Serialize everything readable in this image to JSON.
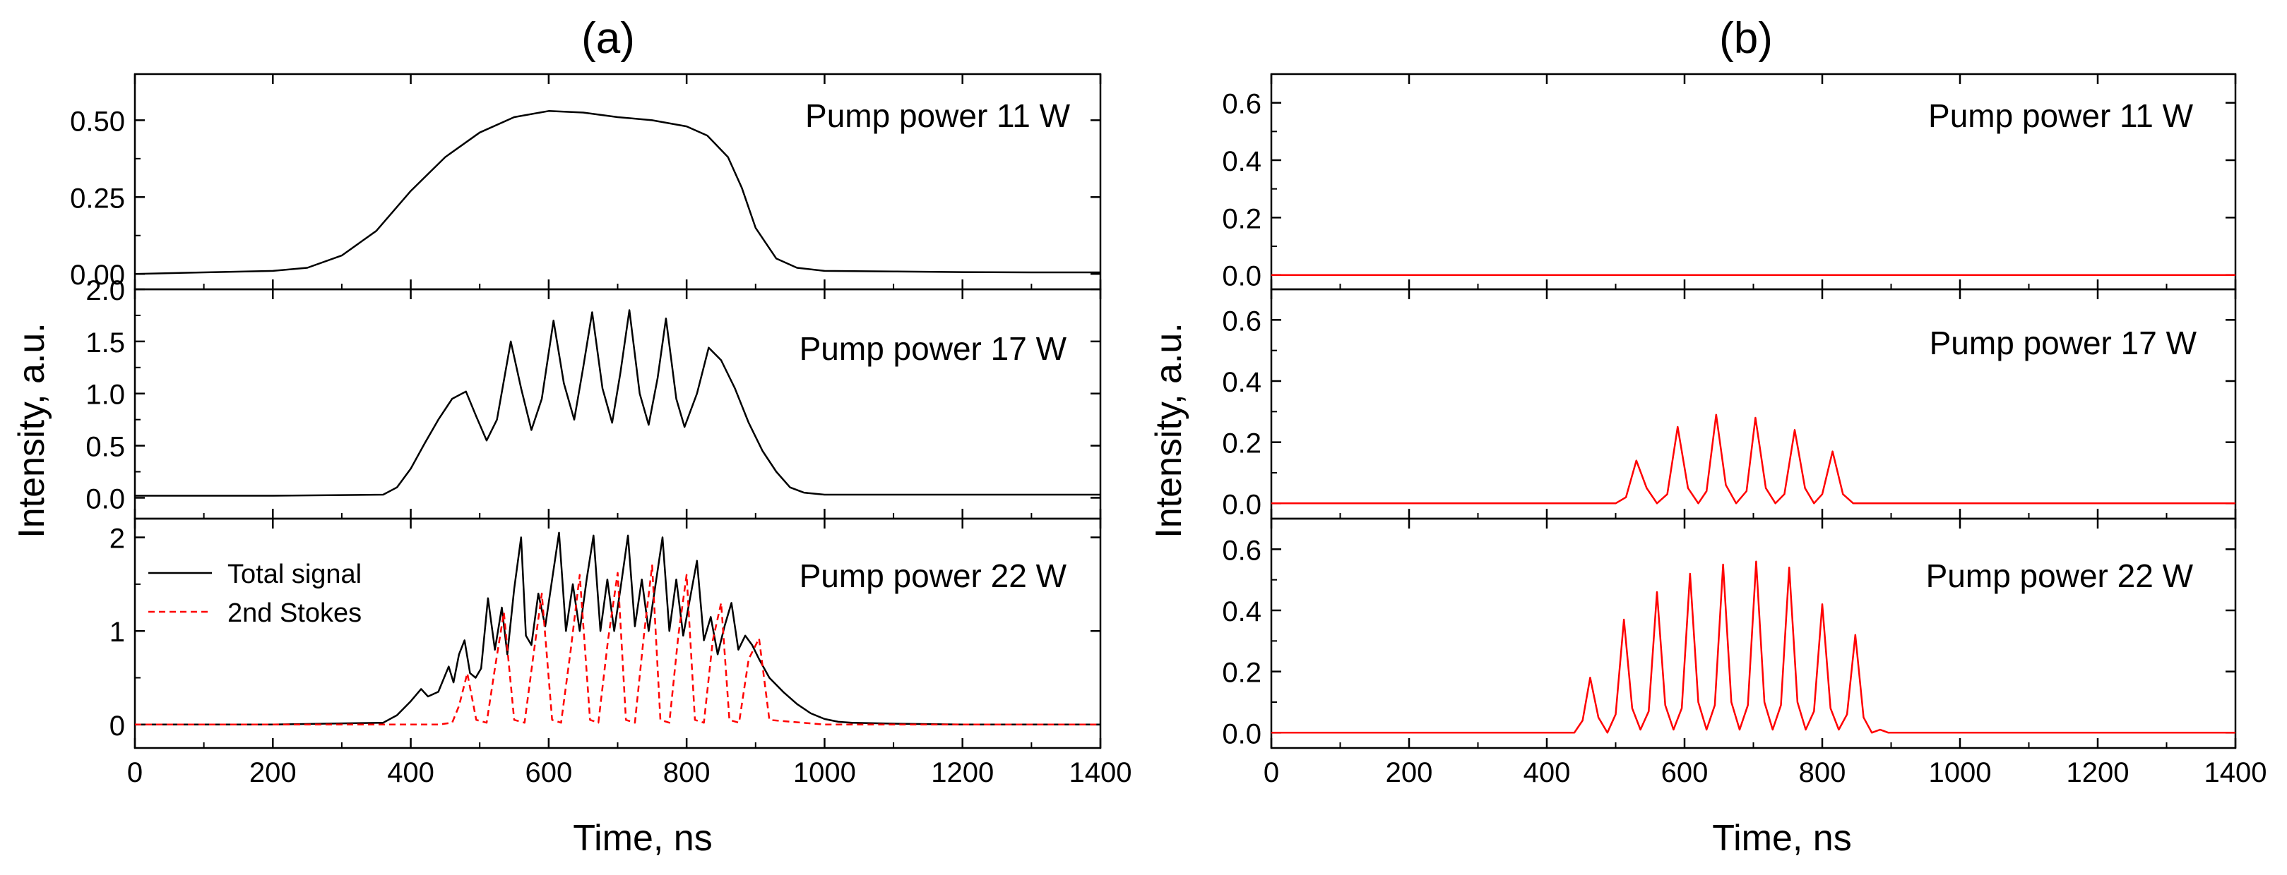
{
  "colors": {
    "black": "#000000",
    "red": "#ff0000"
  },
  "chart_data": [
    {
      "id": "a",
      "type": "line",
      "label": "(a)",
      "xlabel": "Time, ns",
      "ylabel": "Intensity, a.u.",
      "xlim": [
        0,
        1400
      ],
      "xticks": [
        "0",
        "200",
        "400",
        "600",
        "800",
        "1000",
        "1200",
        "1400"
      ],
      "panels": [
        {
          "title": "Pump power 11 W",
          "ylim": [
            -0.05,
            0.65
          ],
          "yticks": [
            {
              "v": 0,
              "label": "0.00"
            },
            {
              "v": 0.25,
              "label": "0.25"
            },
            {
              "v": 0.5,
              "label": "0.50"
            }
          ],
          "series": [
            {
              "name": "Total signal",
              "color": "#000000",
              "style": "solid",
              "x": [
                0,
                100,
                200,
                250,
                300,
                350,
                400,
                450,
                500,
                550,
                600,
                650,
                700,
                750,
                800,
                830,
                860,
                880,
                900,
                930,
                960,
                1000,
                1100,
                1200,
                1300,
                1400
              ],
              "y": [
                0.0,
                0.005,
                0.01,
                0.02,
                0.06,
                0.14,
                0.27,
                0.38,
                0.46,
                0.51,
                0.53,
                0.525,
                0.51,
                0.5,
                0.48,
                0.45,
                0.38,
                0.28,
                0.15,
                0.05,
                0.02,
                0.01,
                0.008,
                0.006,
                0.005,
                0.005
              ]
            }
          ]
        },
        {
          "title": "Pump power  17 W",
          "ylim": [
            -0.2,
            2.0
          ],
          "yticks": [
            {
              "v": 0,
              "label": "0.0"
            },
            {
              "v": 0.5,
              "label": "0.5"
            },
            {
              "v": 1.0,
              "label": "1.0"
            },
            {
              "v": 1.5,
              "label": "1.5"
            },
            {
              "v": 2.0,
              "label": "2.0"
            }
          ],
          "series": [
            {
              "name": "Total signal",
              "color": "#000000",
              "style": "solid",
              "x": [
                0,
                200,
                360,
                380,
                400,
                420,
                440,
                460,
                480,
                495,
                510,
                525,
                545,
                560,
                575,
                590,
                607,
                622,
                637,
                650,
                663,
                678,
                692,
                704,
                717,
                732,
                745,
                758,
                770,
                785,
                797,
                815,
                832,
                850,
                870,
                890,
                910,
                930,
                950,
                970,
                1000,
                1100,
                1400
              ],
              "y": [
                0.02,
                0.02,
                0.03,
                0.1,
                0.28,
                0.52,
                0.75,
                0.95,
                1.02,
                0.78,
                0.55,
                0.75,
                1.5,
                1.05,
                0.65,
                0.95,
                1.7,
                1.1,
                0.75,
                1.25,
                1.78,
                1.05,
                0.72,
                1.2,
                1.8,
                1.0,
                0.7,
                1.15,
                1.72,
                0.95,
                0.68,
                1.0,
                1.44,
                1.32,
                1.05,
                0.72,
                0.45,
                0.25,
                0.1,
                0.05,
                0.03,
                0.03,
                0.03
              ]
            }
          ]
        },
        {
          "title": "Pump power  22 W",
          "ylim": [
            -0.25,
            2.2
          ],
          "yticks": [
            {
              "v": 0,
              "label": "0"
            },
            {
              "v": 1,
              "label": "1"
            },
            {
              "v": 2,
              "label": "2"
            }
          ],
          "legend": [
            {
              "label": "Total signal",
              "color": "#000000",
              "style": "solid"
            },
            {
              "label": "2nd Stokes",
              "color": "#ff0000",
              "style": "dashed"
            }
          ],
          "series": [
            {
              "name": "Total signal",
              "color": "#000000",
              "style": "solid",
              "x": [
                0,
                200,
                360,
                380,
                400,
                415,
                425,
                440,
                455,
                462,
                470,
                478,
                486,
                494,
                502,
                512,
                522,
                532,
                540,
                550,
                560,
                567,
                575,
                585,
                595,
                605,
                615,
                625,
                635,
                645,
                655,
                665,
                675,
                685,
                695,
                705,
                715,
                725,
                735,
                745,
                755,
                765,
                775,
                785,
                795,
                805,
                815,
                825,
                835,
                845,
                855,
                865,
                875,
                885,
                895,
                905,
                920,
                940,
                960,
                980,
                1000,
                1020,
                1040,
                1100,
                1200,
                1400
              ],
              "y": [
                0.0,
                0.0,
                0.02,
                0.1,
                0.25,
                0.38,
                0.3,
                0.35,
                0.62,
                0.45,
                0.75,
                0.9,
                0.55,
                0.5,
                0.6,
                1.35,
                0.8,
                1.25,
                0.75,
                1.45,
                2.0,
                0.95,
                0.85,
                1.4,
                1.05,
                1.55,
                2.05,
                1.0,
                1.5,
                1.0,
                1.55,
                2.02,
                1.0,
                1.55,
                1.0,
                1.5,
                2.02,
                1.05,
                1.55,
                1.0,
                1.5,
                2.0,
                1.0,
                1.55,
                0.95,
                1.35,
                1.75,
                0.9,
                1.15,
                0.75,
                1.05,
                1.3,
                0.8,
                0.95,
                0.85,
                0.7,
                0.5,
                0.35,
                0.22,
                0.12,
                0.06,
                0.03,
                0.02,
                0.01,
                0.0,
                0.0
              ]
            },
            {
              "name": "2nd Stokes",
              "color": "#ff0000",
              "style": "dashed",
              "x": [
                0,
                440,
                460,
                470,
                482,
                495,
                510,
                522,
                535,
                550,
                565,
                578,
                590,
                605,
                618,
                632,
                645,
                660,
                672,
                686,
                700,
                712,
                725,
                738,
                750,
                762,
                775,
                788,
                800,
                812,
                825,
                838,
                850,
                862,
                876,
                890,
                905,
                920,
                1000,
                1400
              ],
              "y": [
                0.0,
                0.0,
                0.02,
                0.2,
                0.55,
                0.05,
                0.02,
                0.6,
                1.2,
                0.05,
                0.02,
                0.75,
                1.4,
                0.05,
                0.02,
                0.8,
                1.6,
                0.05,
                0.02,
                0.9,
                1.62,
                0.05,
                0.02,
                0.95,
                1.7,
                0.05,
                0.02,
                0.95,
                1.6,
                0.05,
                0.02,
                0.9,
                1.3,
                0.05,
                0.02,
                0.7,
                0.92,
                0.05,
                0.0,
                0.0
              ]
            }
          ]
        }
      ]
    },
    {
      "id": "b",
      "type": "line",
      "label": "(b)",
      "xlabel": "Time, ns",
      "ylabel": "Intensity, a.u.",
      "xlim": [
        0,
        1400
      ],
      "xticks": [
        "0",
        "200",
        "400",
        "600",
        "800",
        "1000",
        "1200",
        "1400"
      ],
      "panels": [
        {
          "title": "Pump power 11 W",
          "ylim": [
            -0.05,
            0.7
          ],
          "yticks": [
            {
              "v": 0,
              "label": "0.0"
            },
            {
              "v": 0.2,
              "label": "0.2"
            },
            {
              "v": 0.4,
              "label": "0.4"
            },
            {
              "v": 0.6,
              "label": "0.6"
            }
          ],
          "series": [
            {
              "name": "2nd Stokes",
              "color": "#ff0000",
              "style": "solid",
              "x": [
                0,
                1400
              ],
              "y": [
                0.0,
                0.0
              ]
            }
          ]
        },
        {
          "title": "Pump power  17 W",
          "ylim": [
            -0.05,
            0.7
          ],
          "yticks": [
            {
              "v": 0,
              "label": "0.0"
            },
            {
              "v": 0.2,
              "label": "0.2"
            },
            {
              "v": 0.4,
              "label": "0.4"
            },
            {
              "v": 0.6,
              "label": "0.6"
            }
          ],
          "series": [
            {
              "name": "2nd Stokes",
              "color": "#ff0000",
              "style": "solid",
              "x": [
                0,
                500,
                515,
                530,
                545,
                560,
                575,
                590,
                605,
                620,
                632,
                646,
                660,
                675,
                690,
                703,
                718,
                732,
                745,
                760,
                775,
                788,
                800,
                815,
                830,
                845,
                1400
              ],
              "y": [
                0.0,
                0.0,
                0.02,
                0.14,
                0.05,
                0.0,
                0.03,
                0.25,
                0.05,
                0.0,
                0.04,
                0.29,
                0.06,
                0.0,
                0.04,
                0.28,
                0.05,
                0.0,
                0.03,
                0.24,
                0.05,
                0.0,
                0.03,
                0.17,
                0.03,
                0.0,
                0.0
              ]
            }
          ]
        },
        {
          "title": "Pump power  22 W",
          "ylim": [
            -0.05,
            0.7
          ],
          "yticks": [
            {
              "v": 0,
              "label": "0.0"
            },
            {
              "v": 0.2,
              "label": "0.2"
            },
            {
              "v": 0.4,
              "label": "0.4"
            },
            {
              "v": 0.6,
              "label": "0.6"
            }
          ],
          "series": [
            {
              "name": "2nd Stokes",
              "color": "#ff0000",
              "style": "solid",
              "x": [
                0,
                440,
                452,
                463,
                475,
                488,
                500,
                512,
                524,
                536,
                548,
                560,
                572,
                584,
                596,
                608,
                620,
                632,
                644,
                656,
                668,
                680,
                692,
                704,
                716,
                728,
                740,
                752,
                764,
                776,
                788,
                800,
                812,
                824,
                836,
                848,
                860,
                872,
                884,
                896,
                1400
              ],
              "y": [
                0.0,
                0.0,
                0.04,
                0.18,
                0.05,
                0.0,
                0.06,
                0.37,
                0.08,
                0.01,
                0.07,
                0.46,
                0.09,
                0.01,
                0.08,
                0.52,
                0.1,
                0.01,
                0.09,
                0.55,
                0.1,
                0.01,
                0.09,
                0.56,
                0.1,
                0.01,
                0.09,
                0.54,
                0.1,
                0.01,
                0.07,
                0.42,
                0.08,
                0.01,
                0.06,
                0.32,
                0.05,
                0.0,
                0.01,
                0.0,
                0.0
              ]
            }
          ]
        }
      ]
    }
  ]
}
